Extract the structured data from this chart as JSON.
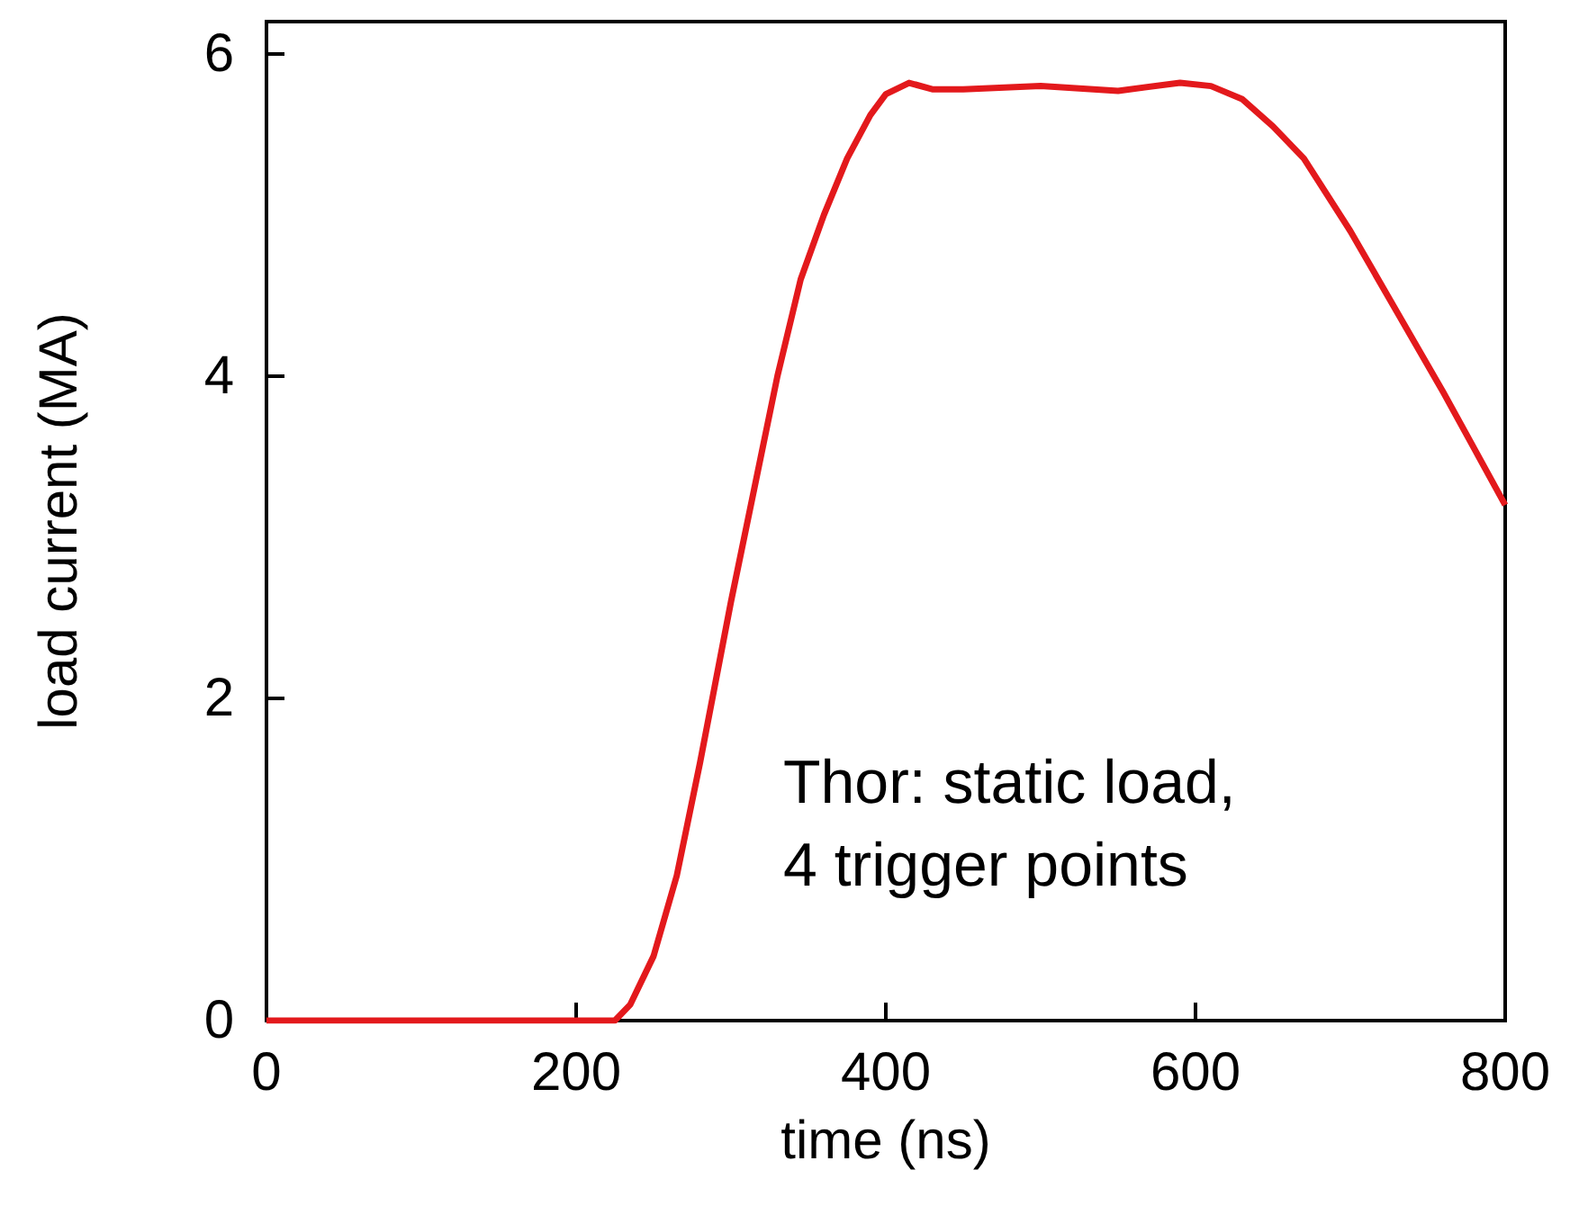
{
  "chart_data": {
    "type": "line",
    "xlabel": "time (ns)",
    "ylabel": "load current (MA)",
    "annotations": [
      "Thor: static load,",
      "4 trigger points"
    ],
    "x": [
      0,
      200,
      225,
      235,
      250,
      265,
      280,
      290,
      300,
      315,
      330,
      345,
      360,
      375,
      390,
      400,
      415,
      430,
      450,
      500,
      550,
      590,
      610,
      630,
      650,
      670,
      700,
      730,
      760,
      780,
      800
    ],
    "series": [
      {
        "color": "#e3191c",
        "values": [
          0,
          0,
          0,
          0.1,
          0.4,
          0.9,
          1.6,
          2.1,
          2.6,
          3.3,
          4.0,
          4.6,
          5.0,
          5.35,
          5.62,
          5.75,
          5.82,
          5.78,
          5.78,
          5.8,
          5.77,
          5.82,
          5.8,
          5.72,
          5.55,
          5.35,
          4.9,
          4.4,
          3.9,
          3.55,
          3.2
        ]
      }
    ],
    "xlim": [
      0,
      800
    ],
    "xticks": [
      0,
      200,
      400,
      600,
      800
    ],
    "ylim": [
      0,
      6.2
    ],
    "yticks": [
      0,
      2,
      4,
      6
    ],
    "grid": false,
    "marker": "none",
    "line_style": "solid"
  }
}
